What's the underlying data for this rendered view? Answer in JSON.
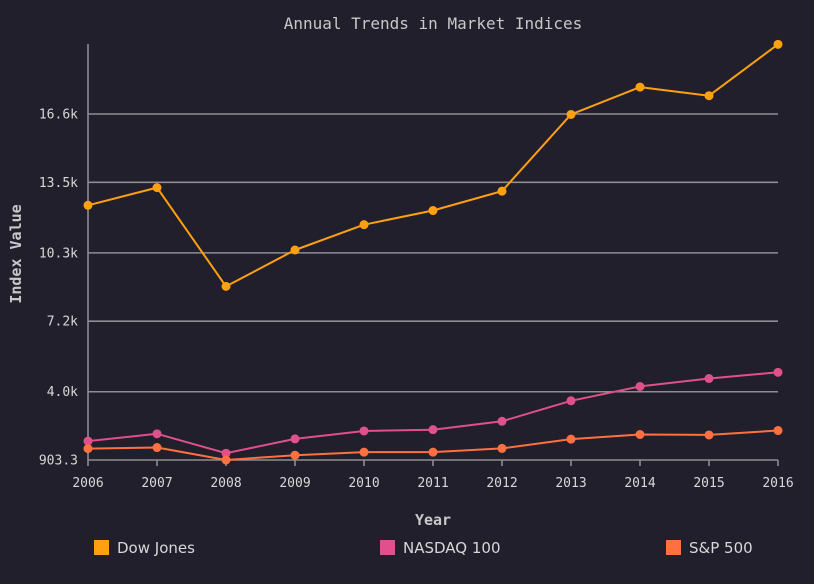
{
  "chart_data": {
    "type": "line",
    "title": "Annual Trends in Market Indices",
    "xlabel": "Year",
    "ylabel": "Index Value",
    "x": [
      2006,
      2007,
      2008,
      2009,
      2010,
      2011,
      2012,
      2013,
      2014,
      2015,
      2016
    ],
    "ylim": [
      903.3,
      19700
    ],
    "yticks": [
      903.3,
      4000,
      7200,
      10300,
      13500,
      16600
    ],
    "ytick_labels": [
      "903.3",
      "4.0k",
      "7.2k",
      "10.3k",
      "13.5k",
      "16.6k"
    ],
    "grid": true,
    "legend_position": "bottom",
    "series": [
      {
        "name": "Dow Jones",
        "color": "#ffa010",
        "values": [
          12460,
          13260,
          8780,
          10430,
          11580,
          12220,
          13100,
          16580,
          17820,
          17430,
          19760
        ]
      },
      {
        "name": "NASDAQ 100",
        "color": "#e0508a",
        "values": [
          1760,
          2090,
          1210,
          1860,
          2220,
          2280,
          2660,
          3590,
          4240,
          4600,
          4880
        ]
      },
      {
        "name": "S&P 500",
        "color": "#ff7040",
        "values": [
          1420,
          1470,
          903.3,
          1120,
          1260,
          1260,
          1430,
          1850,
          2060,
          2040,
          2240
        ]
      }
    ]
  }
}
